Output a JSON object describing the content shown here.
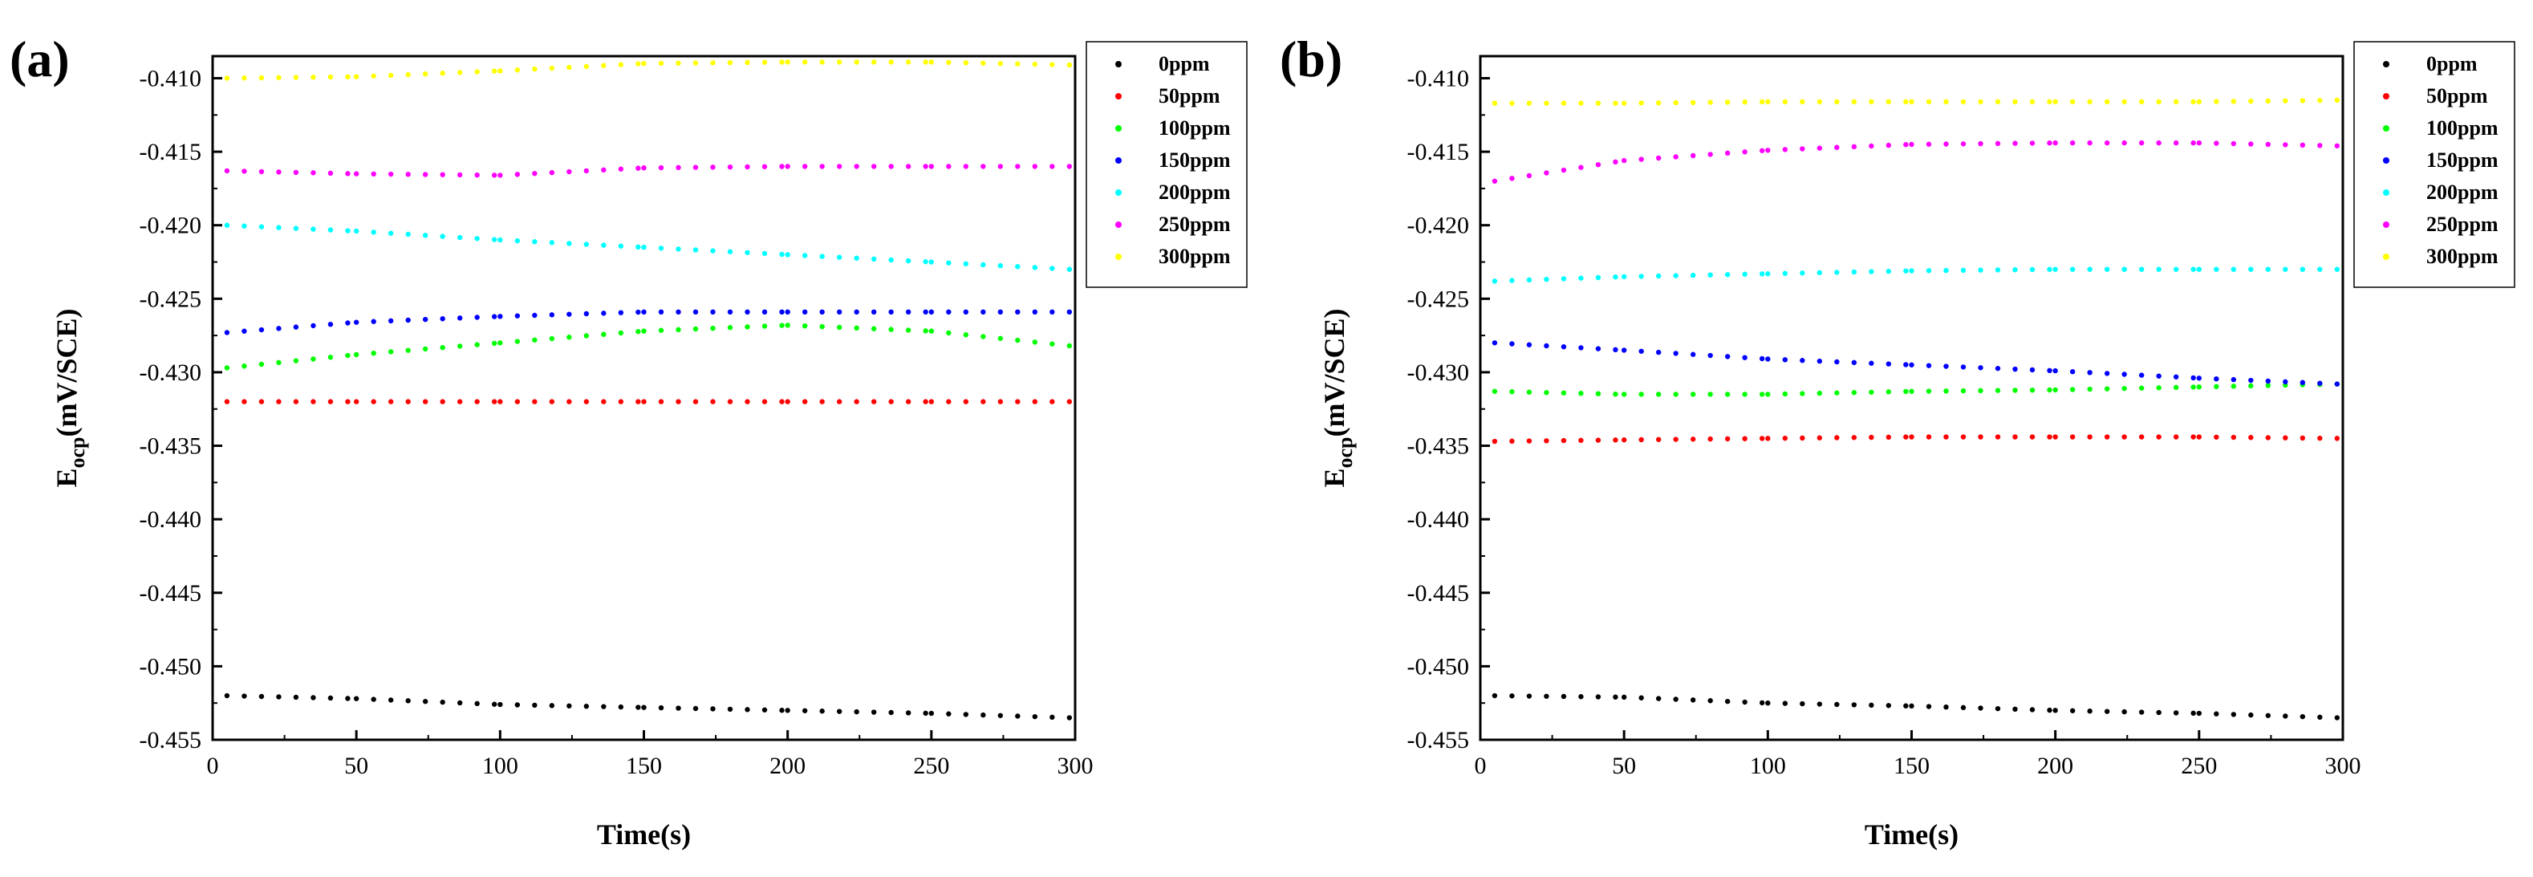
{
  "figure": {
    "panel_labels": [
      "(a)",
      "(b)"
    ]
  },
  "chart_data": [
    {
      "type": "scatter",
      "panel": "(a)",
      "xlabel": "Time(s)",
      "ylabel_main": "E",
      "ylabel_sub": "ocp",
      "ylabel_rest": "(mV/SCE)",
      "xlim": [
        0,
        300
      ],
      "ylim": [
        -0.455,
        -0.4085
      ],
      "xticks": [
        0,
        50,
        100,
        150,
        200,
        250,
        300
      ],
      "xtick_labels": [
        "0",
        "50",
        "100",
        "150",
        "200",
        "250",
        "300"
      ],
      "yticks": [
        -0.41,
        -0.415,
        -0.42,
        -0.425,
        -0.43,
        -0.435,
        -0.44,
        -0.445,
        -0.45,
        -0.455
      ],
      "ytick_labels": [
        "-0.410",
        "-0.415",
        "-0.420",
        "-0.425",
        "-0.430",
        "-0.435",
        "-0.440",
        "-0.445",
        "-0.450",
        "-0.455"
      ],
      "legend_position": "top-right",
      "series": [
        {
          "name": "0ppm",
          "color": "#000000",
          "x": [
            5,
            50,
            100,
            150,
            200,
            250,
            298
          ],
          "y": [
            -0.452,
            -0.4522,
            -0.4526,
            -0.4528,
            -0.453,
            -0.4532,
            -0.4535
          ]
        },
        {
          "name": "50ppm",
          "color": "#ff0000",
          "x": [
            5,
            50,
            100,
            150,
            200,
            250,
            298
          ],
          "y": [
            -0.432,
            -0.432,
            -0.432,
            -0.432,
            -0.432,
            -0.432,
            -0.432
          ]
        },
        {
          "name": "100ppm",
          "color": "#00ff00",
          "x": [
            5,
            50,
            100,
            150,
            200,
            250,
            298
          ],
          "y": [
            -0.4297,
            -0.4288,
            -0.428,
            -0.4272,
            -0.4268,
            -0.4272,
            -0.4282
          ]
        },
        {
          "name": "150ppm",
          "color": "#0000ff",
          "x": [
            5,
            50,
            100,
            150,
            200,
            250,
            298
          ],
          "y": [
            -0.4273,
            -0.4266,
            -0.4262,
            -0.4259,
            -0.4259,
            -0.4259,
            -0.4259
          ]
        },
        {
          "name": "200ppm",
          "color": "#00ffff",
          "x": [
            5,
            50,
            100,
            150,
            200,
            250,
            298
          ],
          "y": [
            -0.42,
            -0.4204,
            -0.421,
            -0.4215,
            -0.422,
            -0.4225,
            -0.423
          ]
        },
        {
          "name": "250ppm",
          "color": "#ff00ff",
          "x": [
            5,
            50,
            100,
            150,
            200,
            250,
            298
          ],
          "y": [
            -0.4163,
            -0.4165,
            -0.4166,
            -0.4161,
            -0.416,
            -0.416,
            -0.416
          ]
        },
        {
          "name": "300ppm",
          "color": "#ffff00",
          "x": [
            5,
            50,
            100,
            150,
            200,
            250,
            298
          ],
          "y": [
            -0.41,
            -0.4099,
            -0.4095,
            -0.409,
            -0.4089,
            -0.4089,
            -0.4091
          ]
        }
      ]
    },
    {
      "type": "scatter",
      "panel": "(b)",
      "xlabel": "Time(s)",
      "ylabel_main": "E",
      "ylabel_sub": "ocp",
      "ylabel_rest": "(mV/SCE)",
      "xlim": [
        0,
        300
      ],
      "ylim": [
        -0.455,
        -0.4085
      ],
      "xticks": [
        0,
        50,
        100,
        150,
        200,
        250,
        300
      ],
      "xtick_labels": [
        "0",
        "50",
        "100",
        "150",
        "200",
        "250",
        "300"
      ],
      "yticks": [
        -0.41,
        -0.415,
        -0.42,
        -0.425,
        -0.43,
        -0.435,
        -0.44,
        -0.445,
        -0.45,
        -0.455
      ],
      "ytick_labels": [
        "-0.410",
        "-0.415",
        "-0.420",
        "-0.425",
        "-0.430",
        "-0.435",
        "-0.440",
        "-0.445",
        "-0.450",
        "-0.455"
      ],
      "legend_position": "top-right",
      "series": [
        {
          "name": "0ppm",
          "color": "#000000",
          "x": [
            5,
            50,
            100,
            150,
            200,
            250,
            298
          ],
          "y": [
            -0.452,
            -0.4521,
            -0.4525,
            -0.4527,
            -0.453,
            -0.4532,
            -0.4535
          ]
        },
        {
          "name": "50ppm",
          "color": "#ff0000",
          "x": [
            5,
            50,
            100,
            150,
            200,
            250,
            298
          ],
          "y": [
            -0.4347,
            -0.4346,
            -0.4345,
            -0.4344,
            -0.4344,
            -0.4344,
            -0.4345
          ]
        },
        {
          "name": "100ppm",
          "color": "#00ff00",
          "x": [
            5,
            50,
            100,
            150,
            200,
            250,
            298
          ],
          "y": [
            -0.4313,
            -0.4315,
            -0.4315,
            -0.4313,
            -0.4312,
            -0.431,
            -0.4308
          ]
        },
        {
          "name": "150ppm",
          "color": "#0000ff",
          "x": [
            5,
            50,
            100,
            150,
            200,
            250,
            298
          ],
          "y": [
            -0.428,
            -0.4285,
            -0.4291,
            -0.4295,
            -0.4299,
            -0.4304,
            -0.4308
          ]
        },
        {
          "name": "200ppm",
          "color": "#00ffff",
          "x": [
            5,
            50,
            100,
            150,
            200,
            250,
            298
          ],
          "y": [
            -0.4238,
            -0.4235,
            -0.4233,
            -0.4231,
            -0.423,
            -0.423,
            -0.423
          ]
        },
        {
          "name": "250ppm",
          "color": "#ff00ff",
          "x": [
            5,
            50,
            100,
            150,
            200,
            250,
            298
          ],
          "y": [
            -0.417,
            -0.4156,
            -0.4149,
            -0.4145,
            -0.4144,
            -0.4144,
            -0.4146
          ]
        },
        {
          "name": "300ppm",
          "color": "#ffff00",
          "x": [
            5,
            50,
            100,
            150,
            200,
            250,
            298
          ],
          "y": [
            -0.4117,
            -0.4117,
            -0.4116,
            -0.4116,
            -0.4116,
            -0.4116,
            -0.4115
          ]
        }
      ]
    }
  ]
}
